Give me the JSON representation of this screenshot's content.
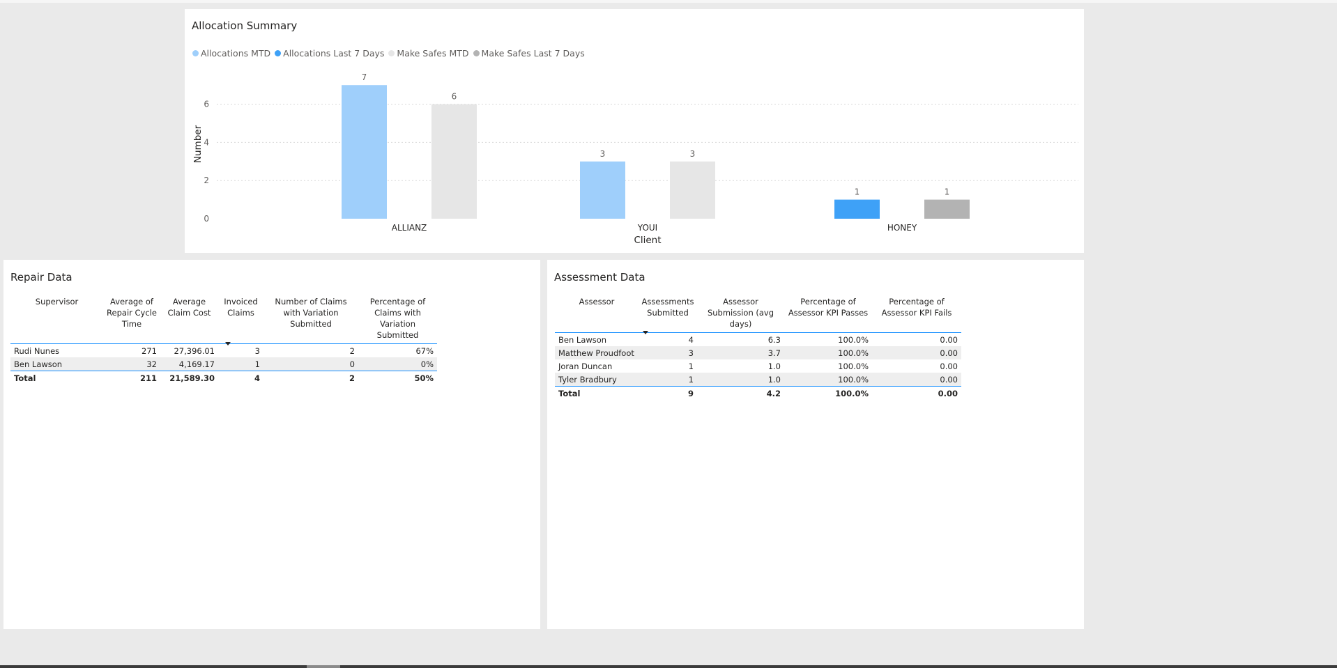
{
  "allocation": {
    "title": "Allocation Summary",
    "legend": [
      {
        "label": "Allocations MTD",
        "color": "#9fcffb"
      },
      {
        "label": "Allocations Last 7 Days",
        "color": "#3ea1f7"
      },
      {
        "label": "Make Safes MTD",
        "color": "#e6e6e6"
      },
      {
        "label": "Make Safes Last 7 Days",
        "color": "#b3b3b3"
      }
    ]
  },
  "chart_data": {
    "type": "bar",
    "title": "Allocation Summary",
    "xlabel": "Client",
    "ylabel": "Number",
    "categories": [
      "ALLIANZ",
      "YOUI",
      "HONEY"
    ],
    "ylim": [
      0,
      7
    ],
    "yticks": [
      0,
      2,
      4,
      6
    ],
    "grid": true,
    "legend_position": "top-left",
    "bars": [
      {
        "category": "ALLIANZ",
        "series": "Allocations MTD",
        "value": 7,
        "color": "#9fcffb"
      },
      {
        "category": "ALLIANZ",
        "series": "Make Safes MTD",
        "value": 6,
        "color": "#e6e6e6"
      },
      {
        "category": "YOUI",
        "series": "Allocations MTD",
        "value": 3,
        "color": "#9fcffb"
      },
      {
        "category": "YOUI",
        "series": "Make Safes MTD",
        "value": 3,
        "color": "#e6e6e6"
      },
      {
        "category": "HONEY",
        "series": "Allocations Last 7 Days",
        "value": 1,
        "color": "#3ea1f7"
      },
      {
        "category": "HONEY",
        "series": "Make Safes Last 7 Days",
        "value": 1,
        "color": "#b3b3b3"
      }
    ]
  },
  "repair": {
    "title": "Repair Data",
    "columns": [
      "Supervisor",
      "Average of Repair Cycle Time",
      "Average Claim Cost",
      "Invoiced Claims",
      "Number of Claims with Variation Submitted",
      "Percentage of Claims with Variation Submitted"
    ],
    "rows": [
      [
        "Rudi Nunes",
        "271",
        "27,396.01",
        "3",
        "2",
        "67%"
      ],
      [
        "Ben Lawson",
        "32",
        "4,169.17",
        "1",
        "0",
        "0%"
      ]
    ],
    "total": [
      "Total",
      "211",
      "21,589.30",
      "4",
      "2",
      "50%"
    ]
  },
  "assessment": {
    "title": "Assessment Data",
    "columns": [
      "Assessor",
      "Assessments Submitted",
      "Assessor Submission (avg days)",
      "Percentage of Assessor KPI Passes",
      "Percentage of Assessor KPI Fails"
    ],
    "rows": [
      [
        "Ben Lawson",
        "4",
        "6.3",
        "100.0%",
        "0.00"
      ],
      [
        "Matthew Proudfoot",
        "3",
        "3.7",
        "100.0%",
        "0.00"
      ],
      [
        "Joran Duncan",
        "1",
        "1.0",
        "100.0%",
        "0.00"
      ],
      [
        "Tyler Bradbury",
        "1",
        "1.0",
        "100.0%",
        "0.00"
      ]
    ],
    "total": [
      "Total",
      "9",
      "4.2",
      "100.0%",
      "0.00"
    ]
  }
}
